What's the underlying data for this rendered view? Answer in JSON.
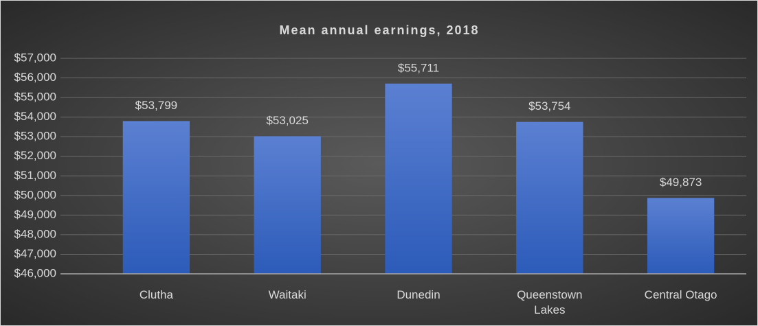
{
  "chart_data": {
    "type": "bar",
    "title": "Mean annual earnings, 2018",
    "categories": [
      "Clutha",
      "Waitaki",
      "Dunedin",
      "Queenstown Lakes",
      "Central Otago"
    ],
    "values": [
      53799,
      53025,
      55711,
      53754,
      49873
    ],
    "value_labels": [
      "$53,799",
      "$53,025",
      "$55,711",
      "$53,754",
      "$49,873"
    ],
    "color": "#4472c4",
    "ylim": [
      46000,
      57000
    ],
    "yticks": [
      {
        "value": 46000,
        "label": "$46,000"
      },
      {
        "value": 47000,
        "label": "$47,000"
      },
      {
        "value": 48000,
        "label": "$48,000"
      },
      {
        "value": 49000,
        "label": "$49,000"
      },
      {
        "value": 50000,
        "label": "$50,000"
      },
      {
        "value": 51000,
        "label": "$51,000"
      },
      {
        "value": 52000,
        "label": "$52,000"
      },
      {
        "value": 53000,
        "label": "$53,000"
      },
      {
        "value": 54000,
        "label": "$54,000"
      },
      {
        "value": 55000,
        "label": "$55,000"
      },
      {
        "value": 56000,
        "label": "$56,000"
      },
      {
        "value": 57000,
        "label": "$57,000"
      }
    ],
    "grid": true
  }
}
